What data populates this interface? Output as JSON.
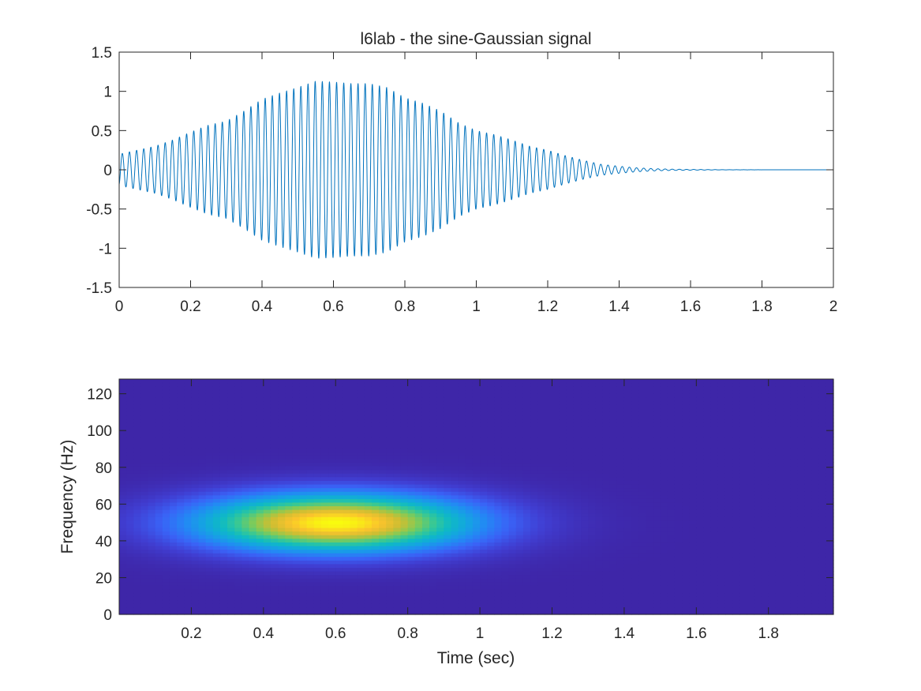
{
  "chart_data": [
    {
      "type": "line",
      "title": "l6lab - the sine-Gaussian signal",
      "xlabel": "",
      "ylabel": "",
      "xlim": [
        0,
        2
      ],
      "ylim": [
        -1.5,
        1.5
      ],
      "xticks": [
        0,
        0.2,
        0.4,
        0.6,
        0.8,
        1,
        1.2,
        1.4,
        1.6,
        1.8,
        2
      ],
      "xtick_labels": [
        "0",
        "0.2",
        "0.4",
        "0.6",
        "0.8",
        "1",
        "1.2",
        "1.4",
        "1.6",
        "1.8",
        "2"
      ],
      "yticks": [
        -1.5,
        -1,
        -0.5,
        0,
        0.5,
        1,
        1.5
      ],
      "ytick_labels": [
        "-1.5",
        "-1",
        "-0.5",
        "0",
        "0.5",
        "1",
        "1.5"
      ],
      "grid": false,
      "series": [
        {
          "color": "#0072BD",
          "carrier_frequency_hz": 50,
          "envelope": {
            "t": [
              0,
              0.05,
              0.1,
              0.15,
              0.2,
              0.25,
              0.3,
              0.35,
              0.4,
              0.45,
              0.5,
              0.55,
              0.6,
              0.65,
              0.7,
              0.75,
              0.8,
              0.85,
              0.9,
              0.95,
              1.0,
              1.05,
              1.1,
              1.15,
              1.2,
              1.25,
              1.3,
              1.35,
              1.4,
              1.45,
              1.5,
              1.55,
              1.6,
              1.65,
              1.7,
              2.0
            ],
            "amplitude": [
              0.2,
              0.25,
              0.3,
              0.38,
              0.48,
              0.57,
              0.62,
              0.75,
              0.9,
              0.98,
              1.05,
              1.13,
              1.12,
              1.1,
              1.1,
              1.05,
              0.92,
              0.85,
              0.75,
              0.6,
              0.5,
              0.45,
              0.38,
              0.3,
              0.25,
              0.18,
              0.12,
              0.07,
              0.045,
              0.025,
              0.014,
              0.008,
              0.005,
              0.003,
              0.001,
              0.0
            ]
          }
        }
      ]
    },
    {
      "type": "heatmap",
      "title": "",
      "xlabel": "Time (sec)",
      "ylabel": "Frequency (Hz)",
      "xlim": [
        0.0,
        1.98
      ],
      "ylim": [
        0,
        128
      ],
      "xticks": [
        0.2,
        0.4,
        0.6,
        0.8,
        1,
        1.2,
        1.4,
        1.6,
        1.8
      ],
      "xtick_labels": [
        "0.2",
        "0.4",
        "0.6",
        "0.8",
        "1",
        "1.2",
        "1.4",
        "1.6",
        "1.8"
      ],
      "yticks": [
        0,
        20,
        40,
        60,
        80,
        100,
        120
      ],
      "ytick_labels": [
        "0",
        "20",
        "40",
        "60",
        "80",
        "100",
        "120"
      ],
      "colormap": "parula",
      "peak": {
        "time": 0.6,
        "frequency": 50,
        "value": 1.0
      },
      "spread": {
        "time_sigma": 0.27,
        "frequency_sigma": 11
      },
      "time_bins": 99,
      "frequency_bins": 65
    }
  ]
}
